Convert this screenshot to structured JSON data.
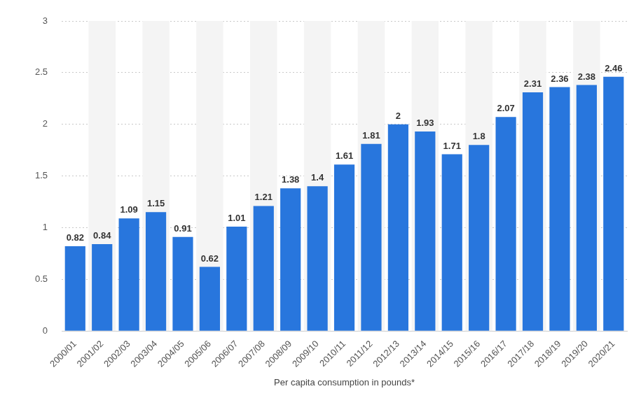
{
  "chart_data": {
    "type": "bar",
    "x_label": "Per capita consumption in pounds*",
    "categories": [
      "2000/01",
      "2001/02",
      "2002/03",
      "2003/04",
      "2004/05",
      "2005/06",
      "2006/07",
      "2007/08",
      "2008/09",
      "2009/10",
      "2010/11",
      "2011/12",
      "2012/13",
      "2013/14",
      "2014/15",
      "2015/16",
      "2016/17",
      "2017/18",
      "2018/19",
      "2019/20",
      "2020/21"
    ],
    "values": [
      0.82,
      0.84,
      1.09,
      1.15,
      0.91,
      0.62,
      1.01,
      1.21,
      1.38,
      1.4,
      1.61,
      1.81,
      2,
      1.93,
      1.71,
      1.8,
      2.07,
      2.31,
      2.36,
      2.38,
      2.46
    ],
    "color": "#2876dd",
    "ylim": [
      0,
      3
    ],
    "yticks": [
      0,
      0.5,
      1,
      1.5,
      2,
      2.5,
      3
    ],
    "grid": true,
    "data_labels": true
  }
}
